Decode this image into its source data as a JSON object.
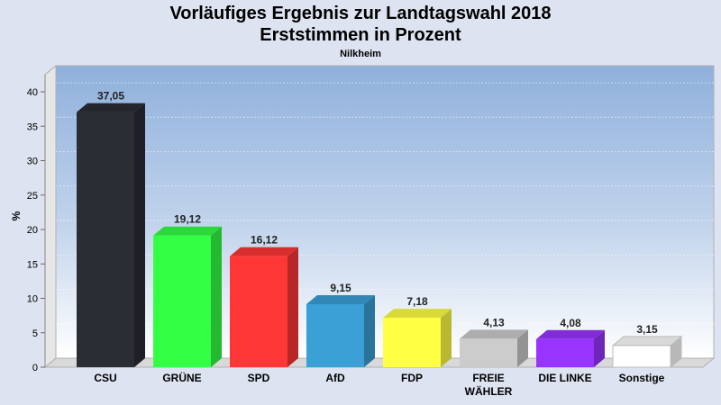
{
  "chart_data": {
    "type": "bar",
    "title": "Vorläufiges Ergebnis zur Landtagswahl 2018",
    "title_line2": "Erststimmen in Prozent",
    "subtitle": "Nilkheim",
    "ylabel": "%",
    "ylim": [
      0,
      40
    ],
    "yticks": [
      "0",
      "5",
      "10",
      "15",
      "20",
      "25",
      "30",
      "35",
      "40"
    ],
    "grid": true,
    "categories": [
      [
        "CSU"
      ],
      [
        "GRÜNE"
      ],
      [
        "SPD"
      ],
      [
        "AfD"
      ],
      [
        "FDP"
      ],
      [
        "FREIE",
        "WÄHLER"
      ],
      [
        "DIE LINKE"
      ],
      [
        "Sonstige"
      ]
    ],
    "values": [
      37.05,
      19.12,
      16.12,
      9.15,
      7.18,
      4.13,
      4.08,
      3.15
    ],
    "value_labels": [
      "37,05",
      "19,12",
      "16,12",
      "9,15",
      "7,18",
      "4,13",
      "4,08",
      "3,15"
    ],
    "colors": [
      "#2a2d33",
      "#33ff44",
      "#ff3636",
      "#3aa0d6",
      "#ffff44",
      "#cccccc",
      "#9933ff",
      "#ffffff"
    ]
  }
}
